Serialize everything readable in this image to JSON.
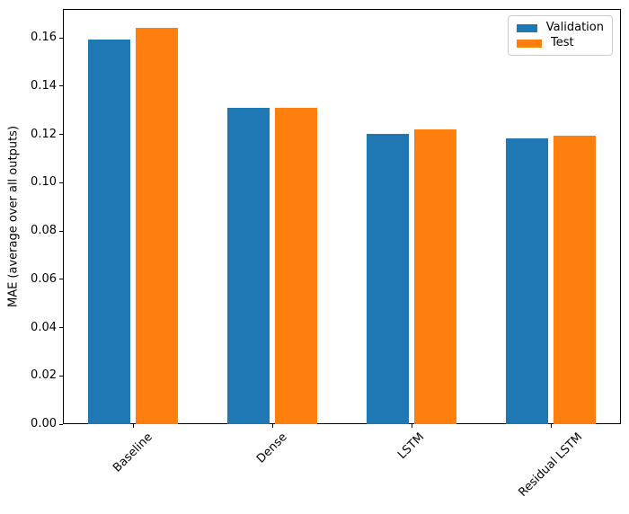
{
  "chart_data": {
    "type": "bar",
    "title": "",
    "categories": [
      "Baseline",
      "Dense",
      "LSTM",
      "Residual LSTM"
    ],
    "series": [
      {
        "name": "Validation",
        "color": "#1f77b4",
        "values": [
          0.1593,
          0.131,
          0.1202,
          0.1183
        ]
      },
      {
        "name": "Test",
        "color": "#ff7f0e",
        "values": [
          0.1641,
          0.131,
          0.1219,
          0.1194
        ]
      }
    ],
    "xlabel": "",
    "ylabel": "MAE (average over all outputs)",
    "ylim": [
      0,
      0.172
    ],
    "yticks": [
      0.0,
      0.02,
      0.04,
      0.06,
      0.08,
      0.1,
      0.12,
      0.14,
      0.16
    ],
    "ytick_labels": [
      "0.00",
      "0.02",
      "0.04",
      "0.06",
      "0.08",
      "0.10",
      "0.12",
      "0.14",
      "0.16"
    ],
    "xtick_rotation": 45,
    "grid": false,
    "legend_position": "upper right",
    "background_color": "#ffffff",
    "spine_color": "#000000"
  }
}
